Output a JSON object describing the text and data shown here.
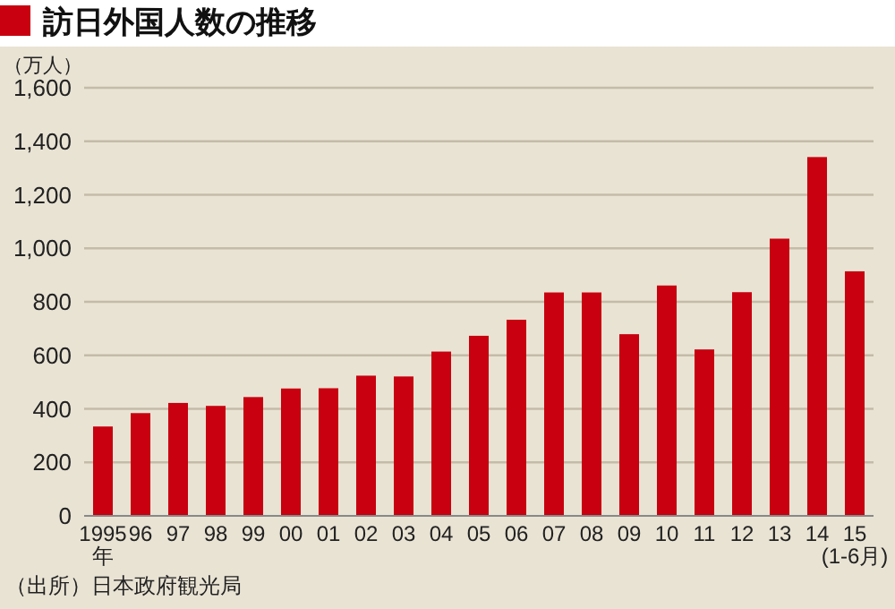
{
  "chart_data": {
    "type": "bar",
    "title": "訪日外国人数の推移",
    "ylabel": "（万人）",
    "categories": [
      "1995\n年",
      "96",
      "97",
      "98",
      "99",
      "00",
      "01",
      "02",
      "03",
      "04",
      "05",
      "06",
      "07",
      "08",
      "09",
      "10",
      "11",
      "12",
      "13",
      "14",
      "15\n(1-6月)"
    ],
    "values": [
      334,
      384,
      422,
      411,
      444,
      476,
      477,
      524,
      521,
      614,
      673,
      733,
      835,
      835,
      679,
      861,
      622,
      836,
      1036,
      1341,
      914
    ],
    "color": "#c8000f",
    "ylim": [
      0,
      1600
    ],
    "yticks": [
      {
        "value": 0,
        "label": "0"
      },
      {
        "value": 200,
        "label": "200"
      },
      {
        "value": 400,
        "label": "400"
      },
      {
        "value": 600,
        "label": "600"
      },
      {
        "value": 800,
        "label": "800"
      },
      {
        "value": 1000,
        "label": "1,000"
      },
      {
        "value": 1200,
        "label": "1,200"
      },
      {
        "value": 1400,
        "label": "1,400"
      },
      {
        "value": 1600,
        "label": "1,600"
      }
    ],
    "grid": "y",
    "annotations": [
      "（出所）日本政府観光局"
    ]
  }
}
